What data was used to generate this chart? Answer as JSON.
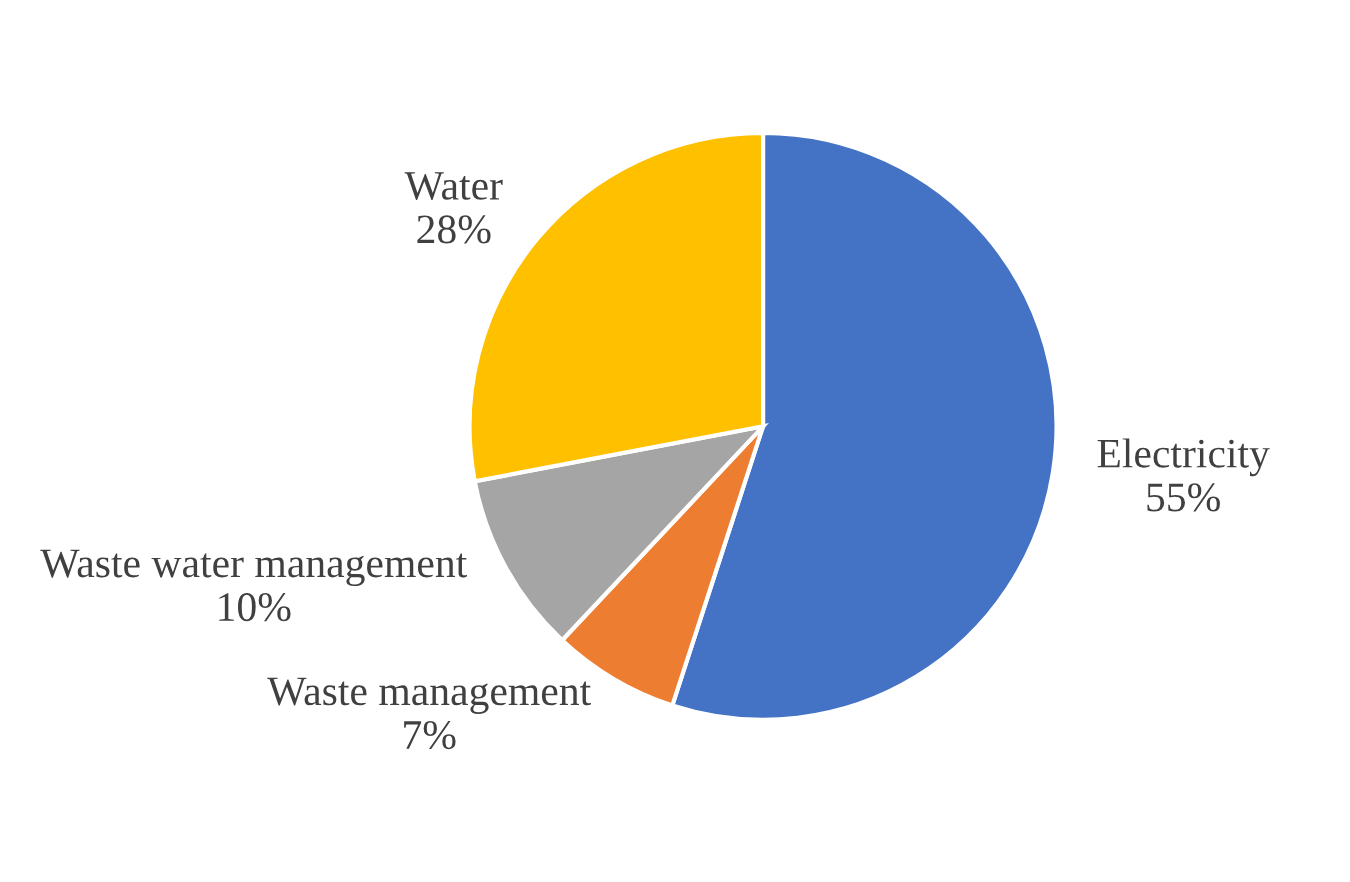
{
  "chart_data": {
    "type": "pie",
    "categories": [
      "Electricity",
      "Waste management",
      "Waste water management",
      "Water"
    ],
    "values": [
      55,
      7,
      10,
      28
    ],
    "value_labels": [
      "55%",
      "7%",
      "10%",
      "28%"
    ],
    "colors": [
      "#4472c4",
      "#ed7d31",
      "#a5a5a5",
      "#ffc000"
    ]
  }
}
